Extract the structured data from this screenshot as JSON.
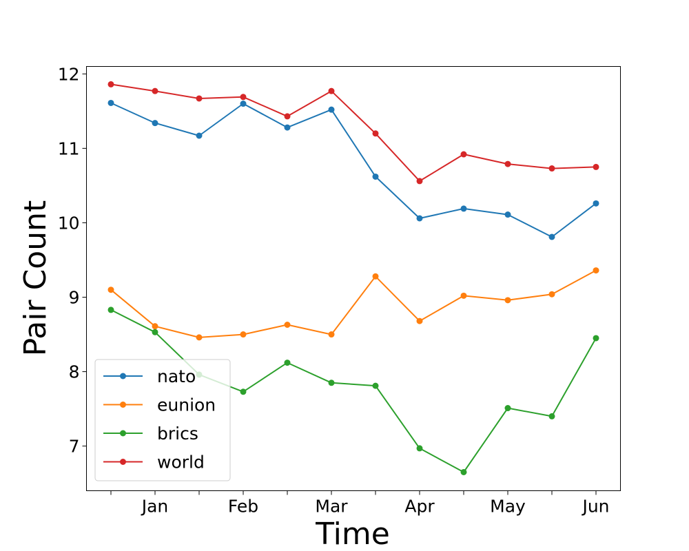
{
  "chart_data": {
    "type": "line",
    "xlabel": "Time",
    "ylabel": "Pair Count",
    "x": [
      "Dec 15",
      "Jan",
      "Jan 15",
      "Feb",
      "Feb 15",
      "Mar",
      "Mar 15",
      "Apr",
      "Apr 15",
      "May",
      "May 15",
      "Jun"
    ],
    "x_tick_labels": [
      "",
      "Jan",
      "",
      "Feb",
      "",
      "Mar",
      "",
      "Apr",
      "",
      "May",
      "",
      "Jun"
    ],
    "ylim": [
      6.4,
      12.1
    ],
    "yticks": [
      7,
      8,
      9,
      10,
      11,
      12
    ],
    "grid": false,
    "legend_position": "lower-left",
    "series": [
      {
        "name": "nato",
        "color": "#1f77b4",
        "values": [
          11.61,
          11.34,
          11.17,
          11.6,
          11.28,
          11.52,
          10.62,
          10.06,
          10.19,
          10.11,
          9.81,
          10.26
        ]
      },
      {
        "name": "eunion",
        "color": "#ff7f0e",
        "values": [
          9.1,
          8.61,
          8.46,
          8.5,
          8.63,
          8.5,
          9.28,
          8.68,
          9.02,
          8.96,
          9.04,
          9.36
        ]
      },
      {
        "name": "brics",
        "color": "#2ca02c",
        "values": [
          8.83,
          8.53,
          7.96,
          7.73,
          8.12,
          7.85,
          7.81,
          6.97,
          6.65,
          7.51,
          7.4,
          8.45
        ]
      },
      {
        "name": "world",
        "color": "#d62728",
        "values": [
          11.86,
          11.77,
          11.67,
          11.69,
          11.43,
          11.77,
          11.2,
          10.56,
          10.92,
          10.79,
          10.73,
          10.75
        ]
      }
    ]
  }
}
